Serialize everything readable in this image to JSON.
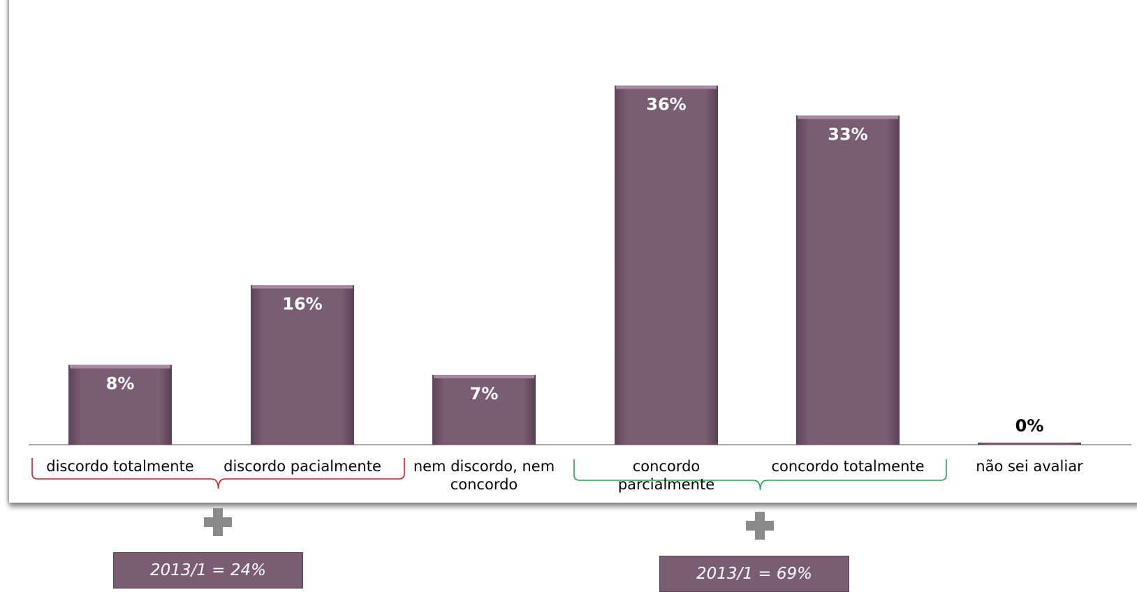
{
  "chart_data": {
    "type": "bar",
    "categories": [
      "discordo totalmente",
      "discordo pacialmente",
      "nem discordo, nem concordo",
      "concordo parcialmente",
      "concordo totalmente",
      "não sei avaliar"
    ],
    "values": [
      8,
      16,
      7,
      36,
      33,
      0
    ],
    "value_labels": [
      "8%",
      "16%",
      "7%",
      "36%",
      "33%",
      "0%"
    ],
    "unit": "%",
    "ylim": [
      0,
      38
    ],
    "grid": false,
    "bar_color": "#7a5c73",
    "groups": [
      {
        "categories": [
          0,
          1
        ],
        "bracket_color": "#e8141b",
        "summary": "2013/1 = 24%"
      },
      {
        "categories": [
          3,
          4
        ],
        "bracket_color": "#1fa64a",
        "summary": "2013/1 = 69%"
      }
    ]
  },
  "labels": {
    "cat0": "discordo totalmente",
    "cat1": "discordo pacialmente",
    "cat2_line1": "nem discordo, nem",
    "cat2_line2": "concordo",
    "cat3": "concordo parcialmente",
    "cat4": "concordo totalmente",
    "cat5": "não sei avaliar"
  },
  "summaries": {
    "left": "2013/1 = 24%",
    "right": "2013/1 = 69%"
  },
  "icons": {
    "group_marker": "plus-icon"
  }
}
